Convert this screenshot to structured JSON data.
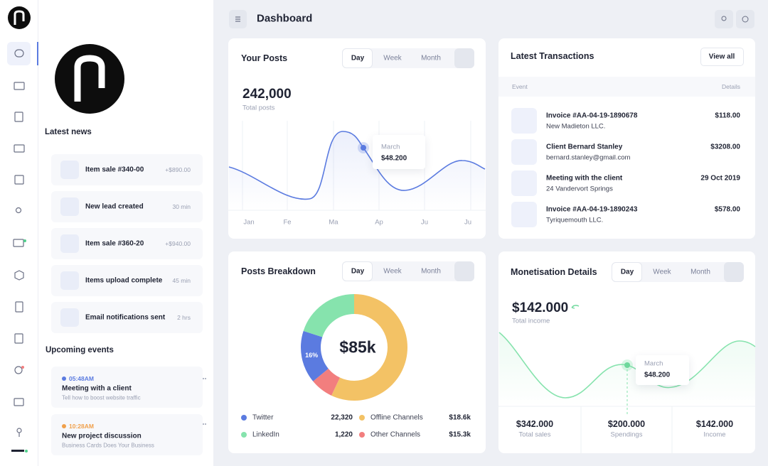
{
  "header": {
    "title": "Dashboard"
  },
  "sidebar": {
    "news_title": "Latest news",
    "news": [
      {
        "label": "Item sale #340-00",
        "meta": "+$890.00"
      },
      {
        "label": "New lead created",
        "meta": "30 min"
      },
      {
        "label": "Item sale #360-20",
        "meta": "+$940.00"
      },
      {
        "label": "Items upload complete",
        "meta": "45 min"
      },
      {
        "label": "Email notifications sent",
        "meta": "2 hrs"
      }
    ],
    "events_title": "Upcoming events",
    "events": [
      {
        "time": "05:48AM",
        "title": "Meeting with a client",
        "desc": "Tell how to boost website traffic",
        "color": "#5b7be0"
      },
      {
        "time": "10:28AM",
        "title": "New project discussion",
        "desc": "Business Cards Does Your Business",
        "color": "#f0a04b"
      }
    ]
  },
  "posts": {
    "title": "Your Posts",
    "tabs": [
      "Day",
      "Week",
      "Month"
    ],
    "total": "242,000",
    "total_label": "Total posts",
    "months": [
      "Jan",
      "Fe",
      "Ma",
      "Ap",
      "Ju",
      "Ju"
    ],
    "tooltip": {
      "month": "March",
      "value": "$48.200"
    }
  },
  "transactions": {
    "title": "Latest Transactions",
    "button": "View all",
    "columns": [
      "Event",
      "Details"
    ],
    "rows": [
      {
        "title": "Invoice #AA-04-19-1890678",
        "sub": "New Madieton LLC.",
        "amount": "$118.00"
      },
      {
        "title": "Client Bernard Stanley",
        "sub": "bernard.stanley@gmail.com",
        "amount": "$3208.00"
      },
      {
        "title": "Meeting with the client",
        "sub": "24 Vandervort Springs",
        "amount": "29 Oct 2019"
      },
      {
        "title": "Invoice #AA-04-19-1890243",
        "sub": "Tyriquemouth LLC.",
        "amount": "$578.00"
      }
    ]
  },
  "breakdown": {
    "title": "Posts Breakdown",
    "tabs": [
      "Day",
      "Week",
      "Month"
    ],
    "center": "$85k",
    "segments": [
      {
        "share": 57,
        "color": "#f3c265"
      },
      {
        "share": 7,
        "color": "#f27e7e"
      },
      {
        "share": 16,
        "color": "#5b7be0",
        "label": "16%"
      },
      {
        "share": 20,
        "color": "#86e3ad"
      }
    ],
    "legend": [
      {
        "name": "Twitter",
        "value": "22,320",
        "color": "#5b7be0"
      },
      {
        "name": "LinkedIn",
        "value": "1,220",
        "color": "#86e3ad"
      },
      {
        "name": "Offline Channels",
        "value": "$18.6k",
        "color": "#f3c265"
      },
      {
        "name": "Other Channels",
        "value": "$15.3k",
        "color": "#f27e7e"
      }
    ]
  },
  "monetisation": {
    "title": "Monetisation Details",
    "tabs": [
      "Day",
      "Week",
      "Month"
    ],
    "total": "$142.000",
    "total_label": "Total income",
    "tooltip": {
      "month": "March",
      "value": "$48.200"
    },
    "stats": [
      {
        "value": "$342.000",
        "label": "Total sales"
      },
      {
        "value": "$200.000",
        "label": "Spendings"
      },
      {
        "value": "$142.000",
        "label": "Income"
      }
    ]
  }
}
